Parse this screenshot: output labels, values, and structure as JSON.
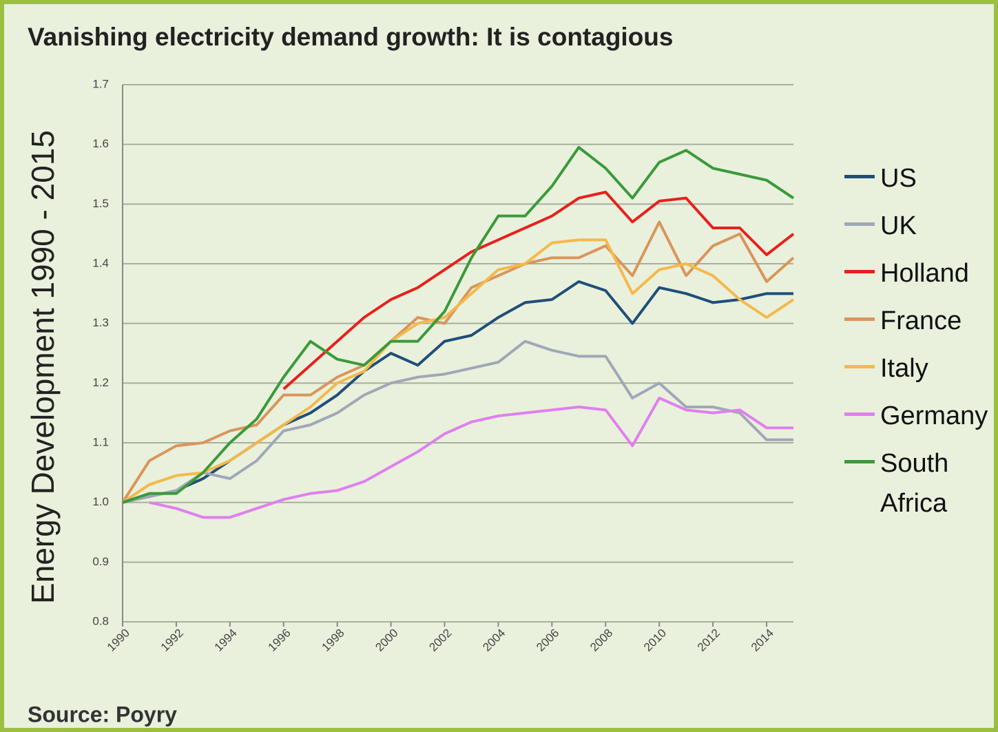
{
  "chart_data": {
    "type": "line",
    "title": "Vanishing electricity demand growth: It is contagious",
    "y_label": "Energy Development 1990 - 2015",
    "source": "Source: Poyry",
    "x": [
      1990,
      1991,
      1992,
      1993,
      1994,
      1995,
      1996,
      1997,
      1998,
      1999,
      2000,
      2001,
      2002,
      2003,
      2004,
      2005,
      2006,
      2007,
      2008,
      2009,
      2010,
      2011,
      2012,
      2013,
      2014,
      2015
    ],
    "xlim": [
      1990,
      2015
    ],
    "xticks": [
      1990,
      1992,
      1994,
      1996,
      1998,
      2000,
      2002,
      2004,
      2006,
      2008,
      2010,
      2012,
      2014
    ],
    "ylim": [
      0.8,
      1.7
    ],
    "yticks": [
      0.8,
      0.9,
      {
        "value": 1,
        "label": "1.0"
      },
      1.1,
      1.2,
      1.3,
      1.4,
      1.5,
      1.6,
      1.7
    ],
    "grid": true,
    "legend": "right",
    "series": [
      {
        "name": "US",
        "color": "#1f4e79",
        "values": [
          1.0,
          1.01,
          1.02,
          1.04,
          1.07,
          1.1,
          1.13,
          1.15,
          1.18,
          1.22,
          1.25,
          1.23,
          1.27,
          1.28,
          1.31,
          1.335,
          1.34,
          1.37,
          1.355,
          1.3,
          1.36,
          1.35,
          1.335,
          1.34,
          1.35,
          1.35
        ]
      },
      {
        "name": "UK",
        "color": "#a0a8b8",
        "values": [
          1.0,
          1.01,
          1.02,
          1.05,
          1.04,
          1.07,
          1.12,
          1.13,
          1.15,
          1.18,
          1.2,
          1.21,
          1.215,
          1.225,
          1.235,
          1.27,
          1.255,
          1.245,
          1.245,
          1.175,
          1.2,
          1.16,
          1.16,
          1.15,
          1.105,
          1.105
        ]
      },
      {
        "name": "Holland",
        "color": "#e8201c",
        "values": [
          null,
          null,
          null,
          null,
          null,
          null,
          1.19,
          1.23,
          1.27,
          1.31,
          1.34,
          1.36,
          1.39,
          1.42,
          1.44,
          1.46,
          1.48,
          1.51,
          1.52,
          1.47,
          1.505,
          1.51,
          1.46,
          1.46,
          1.415,
          1.45
        ]
      },
      {
        "name": "France",
        "color": "#d9955a",
        "values": [
          1.0,
          1.07,
          1.095,
          1.1,
          1.12,
          1.13,
          1.18,
          1.18,
          1.21,
          1.23,
          1.27,
          1.31,
          1.3,
          1.36,
          1.38,
          1.4,
          1.41,
          1.41,
          1.43,
          1.38,
          1.47,
          1.38,
          1.43,
          1.45,
          1.37,
          1.41
        ]
      },
      {
        "name": "Italy",
        "color": "#f5b84a",
        "values": [
          1.0,
          1.03,
          1.045,
          1.05,
          1.07,
          1.1,
          1.13,
          1.16,
          1.2,
          1.22,
          1.27,
          1.3,
          1.31,
          1.35,
          1.39,
          1.4,
          1.435,
          1.44,
          1.44,
          1.35,
          1.39,
          1.4,
          1.38,
          1.34,
          1.31,
          1.34
        ]
      },
      {
        "name": "Germany",
        "color": "#e080f0",
        "values": [
          null,
          1.0,
          0.99,
          0.975,
          0.975,
          0.99,
          1.005,
          1.015,
          1.02,
          1.035,
          1.06,
          1.085,
          1.115,
          1.135,
          1.145,
          1.15,
          1.155,
          1.16,
          1.155,
          1.095,
          1.175,
          1.155,
          1.15,
          1.155,
          1.125,
          1.125
        ]
      },
      {
        "name": "South Africa",
        "color": "#3a9a3a",
        "values": [
          1.0,
          1.015,
          1.015,
          1.05,
          1.1,
          1.14,
          1.21,
          1.27,
          1.24,
          1.23,
          1.27,
          1.27,
          1.32,
          1.41,
          1.48,
          1.48,
          1.53,
          1.595,
          1.56,
          1.51,
          1.57,
          1.59,
          1.56,
          1.55,
          1.54,
          1.51
        ]
      }
    ]
  }
}
